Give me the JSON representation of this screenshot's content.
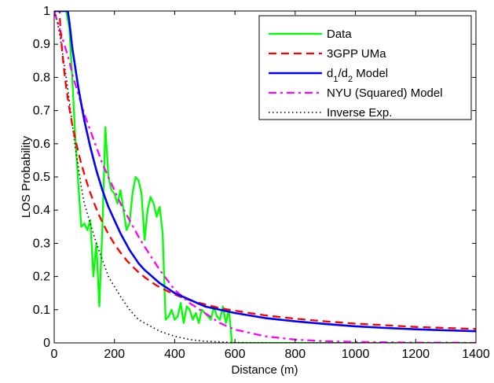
{
  "chart_data": {
    "type": "line",
    "title": "",
    "xlabel": "Distance (m)",
    "ylabel": "LOS Probability",
    "xlim": [
      0,
      1400
    ],
    "ylim": [
      0,
      1
    ],
    "grid": false,
    "legend_position": "top-right",
    "x_ticks": [
      {
        "value": 0,
        "label": "0"
      },
      {
        "value": 200,
        "label": "200"
      },
      {
        "value": 400,
        "label": "400"
      },
      {
        "value": 600,
        "label": "600"
      },
      {
        "value": 800,
        "label": "800"
      },
      {
        "value": 1000,
        "label": "1000"
      },
      {
        "value": 1200,
        "label": "1200"
      },
      {
        "value": 1400,
        "label": "1400"
      }
    ],
    "y_ticks": [
      {
        "value": 0,
        "label": "0"
      },
      {
        "value": 0.1,
        "label": "0.1"
      },
      {
        "value": 0.2,
        "label": "0.2"
      },
      {
        "value": 0.3,
        "label": "0.3"
      },
      {
        "value": 0.4,
        "label": "0.4"
      },
      {
        "value": 0.5,
        "label": "0.5"
      },
      {
        "value": 0.6,
        "label": "0.6"
      },
      {
        "value": 0.7,
        "label": "0.7"
      },
      {
        "value": 0.8,
        "label": "0.8"
      },
      {
        "value": 0.9,
        "label": "0.9"
      },
      {
        "value": 1,
        "label": "1"
      }
    ],
    "series": [
      {
        "name": "Data",
        "color": "#00ff00",
        "dash": "solid",
        "x": [
          0,
          10,
          20,
          30,
          40,
          50,
          60,
          70,
          80,
          90,
          100,
          110,
          120,
          130,
          140,
          150,
          160,
          170,
          180,
          190,
          200,
          210,
          220,
          230,
          240,
          250,
          260,
          270,
          280,
          290,
          300,
          310,
          320,
          330,
          340,
          350,
          360,
          370,
          380,
          390,
          400,
          410,
          420,
          430,
          440,
          450,
          460,
          470,
          480,
          490,
          500,
          510,
          520,
          530,
          540,
          550,
          560,
          570,
          580,
          590,
          600,
          700,
          800,
          900,
          1000,
          1100,
          1200,
          1300,
          1400
        ],
        "y": [
          1,
          1,
          1,
          1,
          1,
          0.95,
          0.8,
          0.62,
          0.48,
          0.35,
          0.36,
          0.34,
          0.37,
          0.2,
          0.3,
          0.11,
          0.35,
          0.65,
          0.5,
          0.46,
          0.45,
          0.42,
          0.46,
          0.4,
          0.34,
          0.36,
          0.45,
          0.5,
          0.49,
          0.45,
          0.31,
          0.4,
          0.44,
          0.42,
          0.38,
          0.41,
          0.33,
          0.07,
          0.08,
          0.1,
          0.07,
          0.08,
          0.12,
          0.06,
          0.11,
          0.1,
          0.07,
          0.09,
          0.06,
          0.1,
          0.09,
          0.08,
          0.07,
          0.11,
          0.08,
          0.07,
          0.11,
          0.06,
          0.1,
          0,
          0,
          0,
          0,
          0,
          0,
          0,
          0,
          0,
          0
        ]
      },
      {
        "name": "3GPP UMa",
        "color": "#ff0000",
        "dash": "dashed",
        "x": [
          0,
          5,
          10,
          15,
          18,
          20,
          25,
          30,
          40,
          50,
          60,
          70,
          80,
          90,
          100,
          110,
          120,
          130,
          140,
          150,
          160,
          180,
          200,
          220,
          240,
          260,
          280,
          300,
          320,
          340,
          360,
          380,
          400,
          430,
          460,
          500,
          550,
          600,
          700,
          800,
          900,
          1000,
          1100,
          1200,
          1300,
          1400
        ],
        "y": [
          1,
          1,
          1,
          1,
          1,
          0.954,
          0.895,
          0.846,
          0.768,
          0.708,
          0.658,
          0.614,
          0.575,
          0.54,
          0.508,
          0.479,
          0.452,
          0.427,
          0.404,
          0.383,
          0.363,
          0.328,
          0.298,
          0.272,
          0.249,
          0.23,
          0.213,
          0.198,
          0.185,
          0.173,
          0.163,
          0.154,
          0.146,
          0.135,
          0.126,
          0.116,
          0.105,
          0.097,
          0.083,
          0.073,
          0.065,
          0.058,
          0.053,
          0.048,
          0.045,
          0.042
        ]
      },
      {
        "name": "d1/d2 Model",
        "color": "#0000ff",
        "dash": "solid",
        "x": [
          0,
          10,
          20,
          30,
          40,
          45,
          50,
          55,
          60,
          70,
          80,
          90,
          100,
          120,
          140,
          160,
          180,
          200,
          220,
          250,
          280,
          300,
          350,
          400,
          450,
          500,
          600,
          700,
          800,
          900,
          1000,
          1100,
          1200,
          1300,
          1400
        ],
        "y": [
          1,
          1,
          1,
          1,
          1,
          1,
          0.97,
          0.93,
          0.89,
          0.83,
          0.77,
          0.72,
          0.67,
          0.59,
          0.52,
          0.46,
          0.41,
          0.37,
          0.33,
          0.28,
          0.24,
          0.22,
          0.18,
          0.15,
          0.13,
          0.11,
          0.09,
          0.075,
          0.065,
          0.057,
          0.05,
          0.045,
          0.041,
          0.038,
          0.035
        ]
      },
      {
        "name": "NYU (Squared) Model",
        "color": "#ff00ff",
        "dash": "dashdot",
        "x": [
          0,
          10,
          20,
          30,
          40,
          50,
          60,
          70,
          80,
          90,
          100,
          120,
          140,
          160,
          180,
          200,
          220,
          250,
          280,
          300,
          350,
          400,
          450,
          500,
          550,
          600,
          700,
          800,
          900,
          1000,
          1100,
          1200,
          1300,
          1400
        ],
        "y": [
          1,
          0.97,
          0.94,
          0.91,
          0.88,
          0.85,
          0.81,
          0.78,
          0.75,
          0.72,
          0.69,
          0.64,
          0.59,
          0.54,
          0.5,
          0.46,
          0.42,
          0.37,
          0.32,
          0.29,
          0.22,
          0.16,
          0.12,
          0.09,
          0.06,
          0.04,
          0.02,
          0.01,
          0.005,
          0.003,
          0.002,
          0.001,
          0.001,
          0
        ]
      },
      {
        "name": "Inverse Exp.",
        "color": "#000000",
        "dash": "dotted",
        "x": [
          0,
          10,
          20,
          30,
          40,
          50,
          60,
          70,
          80,
          90,
          100,
          120,
          140,
          160,
          180,
          200,
          220,
          250,
          280,
          300,
          350,
          400,
          450,
          500,
          600,
          700,
          800,
          1000,
          1200,
          1400
        ],
        "y": [
          1,
          0.97,
          0.92,
          0.86,
          0.8,
          0.73,
          0.66,
          0.59,
          0.53,
          0.47,
          0.42,
          0.36,
          0.3,
          0.25,
          0.2,
          0.17,
          0.14,
          0.1,
          0.07,
          0.06,
          0.035,
          0.02,
          0.01,
          0.005,
          0.001,
          0,
          0,
          0,
          0,
          0
        ]
      }
    ]
  }
}
